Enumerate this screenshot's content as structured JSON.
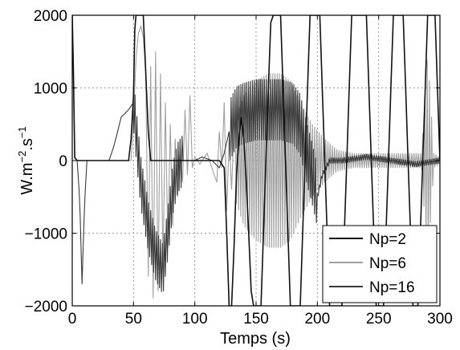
{
  "chart_data": {
    "type": "line",
    "xlabel": "Temps (s)",
    "ylabel_main": "W.m",
    "ylabel_exp1": "−2",
    "ylabel_mid": ".s",
    "ylabel_exp2": "−1",
    "xlim": [
      0,
      300
    ],
    "ylim": [
      -2000,
      2000
    ],
    "x_ticks": [
      0,
      50,
      100,
      150,
      200,
      250,
      300
    ],
    "y_ticks": [
      -2000,
      -1000,
      0,
      1000,
      2000
    ],
    "x_tick_labels": [
      "0",
      "50",
      "100",
      "150",
      "200",
      "250",
      "300"
    ],
    "y_tick_labels": [
      "−2000",
      "−1000",
      "0",
      "1000",
      "2000"
    ],
    "grid": true,
    "legend_position": "bottom-right",
    "series": [
      {
        "name": "Np=2",
        "color": "#111111",
        "points": [
          [
            0,
            2000
          ],
          [
            1,
            1200
          ],
          [
            2,
            40
          ],
          [
            4,
            0
          ],
          [
            46,
            0
          ],
          [
            48,
            300
          ],
          [
            50,
            900
          ],
          [
            51,
            1800
          ],
          [
            52,
            2000
          ],
          [
            58,
            2000
          ],
          [
            60,
            1200
          ],
          [
            62,
            400
          ],
          [
            64,
            0
          ],
          [
            120,
            0
          ],
          [
            124,
            -100
          ],
          [
            126,
            -1000
          ],
          [
            128,
            -2000
          ],
          [
            130,
            -2000
          ],
          [
            132,
            -1200
          ],
          [
            134,
            -200
          ],
          [
            136,
            300
          ],
          [
            138,
            600
          ],
          [
            140,
            300
          ],
          [
            142,
            -300
          ],
          [
            144,
            -1000
          ],
          [
            146,
            -1800
          ],
          [
            148,
            -2000
          ],
          [
            154,
            -2000
          ],
          [
            156,
            -1000
          ],
          [
            158,
            0
          ],
          [
            160,
            1000
          ],
          [
            162,
            1900
          ],
          [
            164,
            2000
          ],
          [
            170,
            2000
          ],
          [
            172,
            1000
          ],
          [
            174,
            0
          ],
          [
            176,
            -1000
          ],
          [
            178,
            -2000
          ],
          [
            186,
            -2000
          ],
          [
            188,
            -1000
          ],
          [
            190,
            0
          ],
          [
            192,
            1000
          ],
          [
            194,
            2000
          ],
          [
            202,
            2000
          ],
          [
            204,
            1000
          ],
          [
            206,
            0
          ],
          [
            208,
            -1000
          ],
          [
            210,
            -2000
          ],
          [
            220,
            -2000
          ],
          [
            222,
            -1000
          ],
          [
            224,
            0
          ],
          [
            226,
            1000
          ],
          [
            228,
            2000
          ],
          [
            240,
            2000
          ],
          [
            242,
            1000
          ],
          [
            244,
            0
          ],
          [
            246,
            -1000
          ],
          [
            248,
            -2000
          ],
          [
            254,
            -2000
          ],
          [
            256,
            -1000
          ],
          [
            258,
            0
          ],
          [
            260,
            1000
          ],
          [
            262,
            2000
          ],
          [
            270,
            2000
          ],
          [
            272,
            1000
          ],
          [
            274,
            0
          ],
          [
            276,
            -1000
          ],
          [
            278,
            -2000
          ],
          [
            282,
            -2000
          ],
          [
            284,
            -1000
          ],
          [
            286,
            0
          ],
          [
            288,
            1000
          ],
          [
            290,
            2000
          ],
          [
            296,
            2000
          ],
          [
            298,
            1000
          ],
          [
            300,
            0
          ]
        ]
      },
      {
        "name": "Np=6",
        "color": "#a0a0a0",
        "amplitude_segments": [
          [
            0,
            0
          ],
          [
            4,
            0
          ],
          [
            8,
            200
          ],
          [
            34,
            200
          ],
          [
            40,
            0
          ],
          [
            46,
            0
          ],
          [
            49,
            500
          ],
          [
            54,
            1800
          ],
          [
            58,
            1900
          ],
          [
            60,
            1800
          ],
          [
            66,
            1400
          ],
          [
            74,
            900
          ],
          [
            82,
            500
          ],
          [
            92,
            300
          ],
          [
            100,
            150
          ],
          [
            108,
            100
          ],
          [
            116,
            100
          ],
          [
            122,
            150
          ],
          [
            128,
            200
          ],
          [
            134,
            600
          ],
          [
            140,
            900
          ],
          [
            150,
            1100
          ],
          [
            160,
            1200
          ],
          [
            170,
            1200
          ],
          [
            178,
            1100
          ],
          [
            186,
            800
          ],
          [
            196,
            500
          ],
          [
            206,
            300
          ],
          [
            216,
            150
          ],
          [
            230,
            100
          ],
          [
            250,
            100
          ],
          [
            270,
            100
          ],
          [
            285,
            100
          ],
          [
            290,
            1500
          ],
          [
            295,
            100
          ],
          [
            300,
            50
          ]
        ],
        "special_points": [
          [
            0,
            2000
          ],
          [
            2,
            50
          ],
          [
            4,
            0
          ],
          [
            48,
            0
          ],
          [
            50,
            600
          ],
          [
            52,
            1400
          ],
          [
            54,
            1750
          ],
          [
            56,
            1850
          ],
          [
            58,
            1700
          ],
          [
            60,
            1200
          ],
          [
            62,
            -1600
          ],
          [
            64,
            1300
          ],
          [
            66,
            -1900
          ],
          [
            68,
            1500
          ],
          [
            70,
            -1800
          ],
          [
            72,
            1200
          ],
          [
            74,
            -1500
          ],
          [
            76,
            800
          ],
          [
            78,
            -1200
          ],
          [
            80,
            500
          ],
          [
            82,
            -900
          ],
          [
            84,
            300
          ],
          [
            86,
            -500
          ],
          [
            88,
            150
          ],
          [
            90,
            -300
          ],
          [
            92,
            700
          ],
          [
            94,
            -200
          ],
          [
            96,
            900
          ],
          [
            98,
            -100
          ],
          [
            100,
            50
          ],
          [
            104,
            -50
          ],
          [
            110,
            100
          ],
          [
            114,
            -100
          ],
          [
            118,
            -300
          ],
          [
            120,
            400
          ],
          [
            122,
            -100
          ],
          [
            124,
            800
          ],
          [
            126,
            -700
          ],
          [
            128,
            300
          ],
          [
            130,
            -400
          ],
          [
            132,
            500
          ]
        ]
      },
      {
        "name": "Np=16",
        "color": "#3a3a3a",
        "envelope": [
          [
            0,
            0
          ],
          [
            4,
            0
          ],
          [
            6,
            -500
          ],
          [
            8,
            -1700
          ],
          [
            10,
            -600
          ],
          [
            12,
            0
          ],
          [
            30,
            0
          ],
          [
            34,
            200
          ],
          [
            40,
            600
          ],
          [
            46,
            700
          ],
          [
            50,
            800
          ],
          [
            52,
            400
          ],
          [
            56,
            -300
          ],
          [
            62,
            -900
          ],
          [
            68,
            -1300
          ],
          [
            74,
            -1500
          ],
          [
            78,
            -1000
          ],
          [
            82,
            -400
          ],
          [
            86,
            -100
          ],
          [
            90,
            0
          ],
          [
            100,
            0
          ],
          [
            106,
            50
          ],
          [
            114,
            0
          ],
          [
            120,
            -100
          ],
          [
            124,
            100
          ],
          [
            128,
            400
          ],
          [
            134,
            600
          ],
          [
            140,
            650
          ],
          [
            150,
            700
          ],
          [
            160,
            700
          ],
          [
            170,
            700
          ],
          [
            180,
            650
          ],
          [
            186,
            500
          ],
          [
            190,
            200
          ],
          [
            196,
            -200
          ],
          [
            200,
            -500
          ],
          [
            204,
            -200
          ],
          [
            210,
            0
          ],
          [
            220,
            0
          ],
          [
            240,
            50
          ],
          [
            260,
            0
          ],
          [
            280,
            -50
          ],
          [
            300,
            0
          ]
        ]
      }
    ]
  }
}
